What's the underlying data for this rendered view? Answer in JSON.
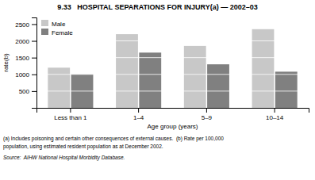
{
  "chart_data": {
    "type": "bar",
    "title": "9.33   HOSPITAL SEPARATIONS FOR INJURY(a) — 2002–03",
    "categories": [
      "Less than 1",
      "1–4",
      "5–9",
      "10–14"
    ],
    "series": [
      {
        "name": "Male",
        "color": "#c8c8c8",
        "values": [
          1200,
          2200,
          1850,
          2350
        ]
      },
      {
        "name": "Female",
        "color": "#808080",
        "values": [
          1000,
          1650,
          1300,
          1080
        ]
      }
    ],
    "xlabel": "Age group (years)",
    "ylabel": "rate(b)",
    "ylim": [
      0,
      2700
    ],
    "yticks": [
      500,
      1000,
      1500,
      2000,
      2500
    ],
    "grid": true,
    "legend": "upper left",
    "annotations": [
      "(a) Includes poisoning and certain other consequences of external causes.  (b) Rate per 100,000",
      "population, using estimated resident population as at December 2002.",
      "Source:  AIHW National Hospital Morbidity Database."
    ]
  }
}
